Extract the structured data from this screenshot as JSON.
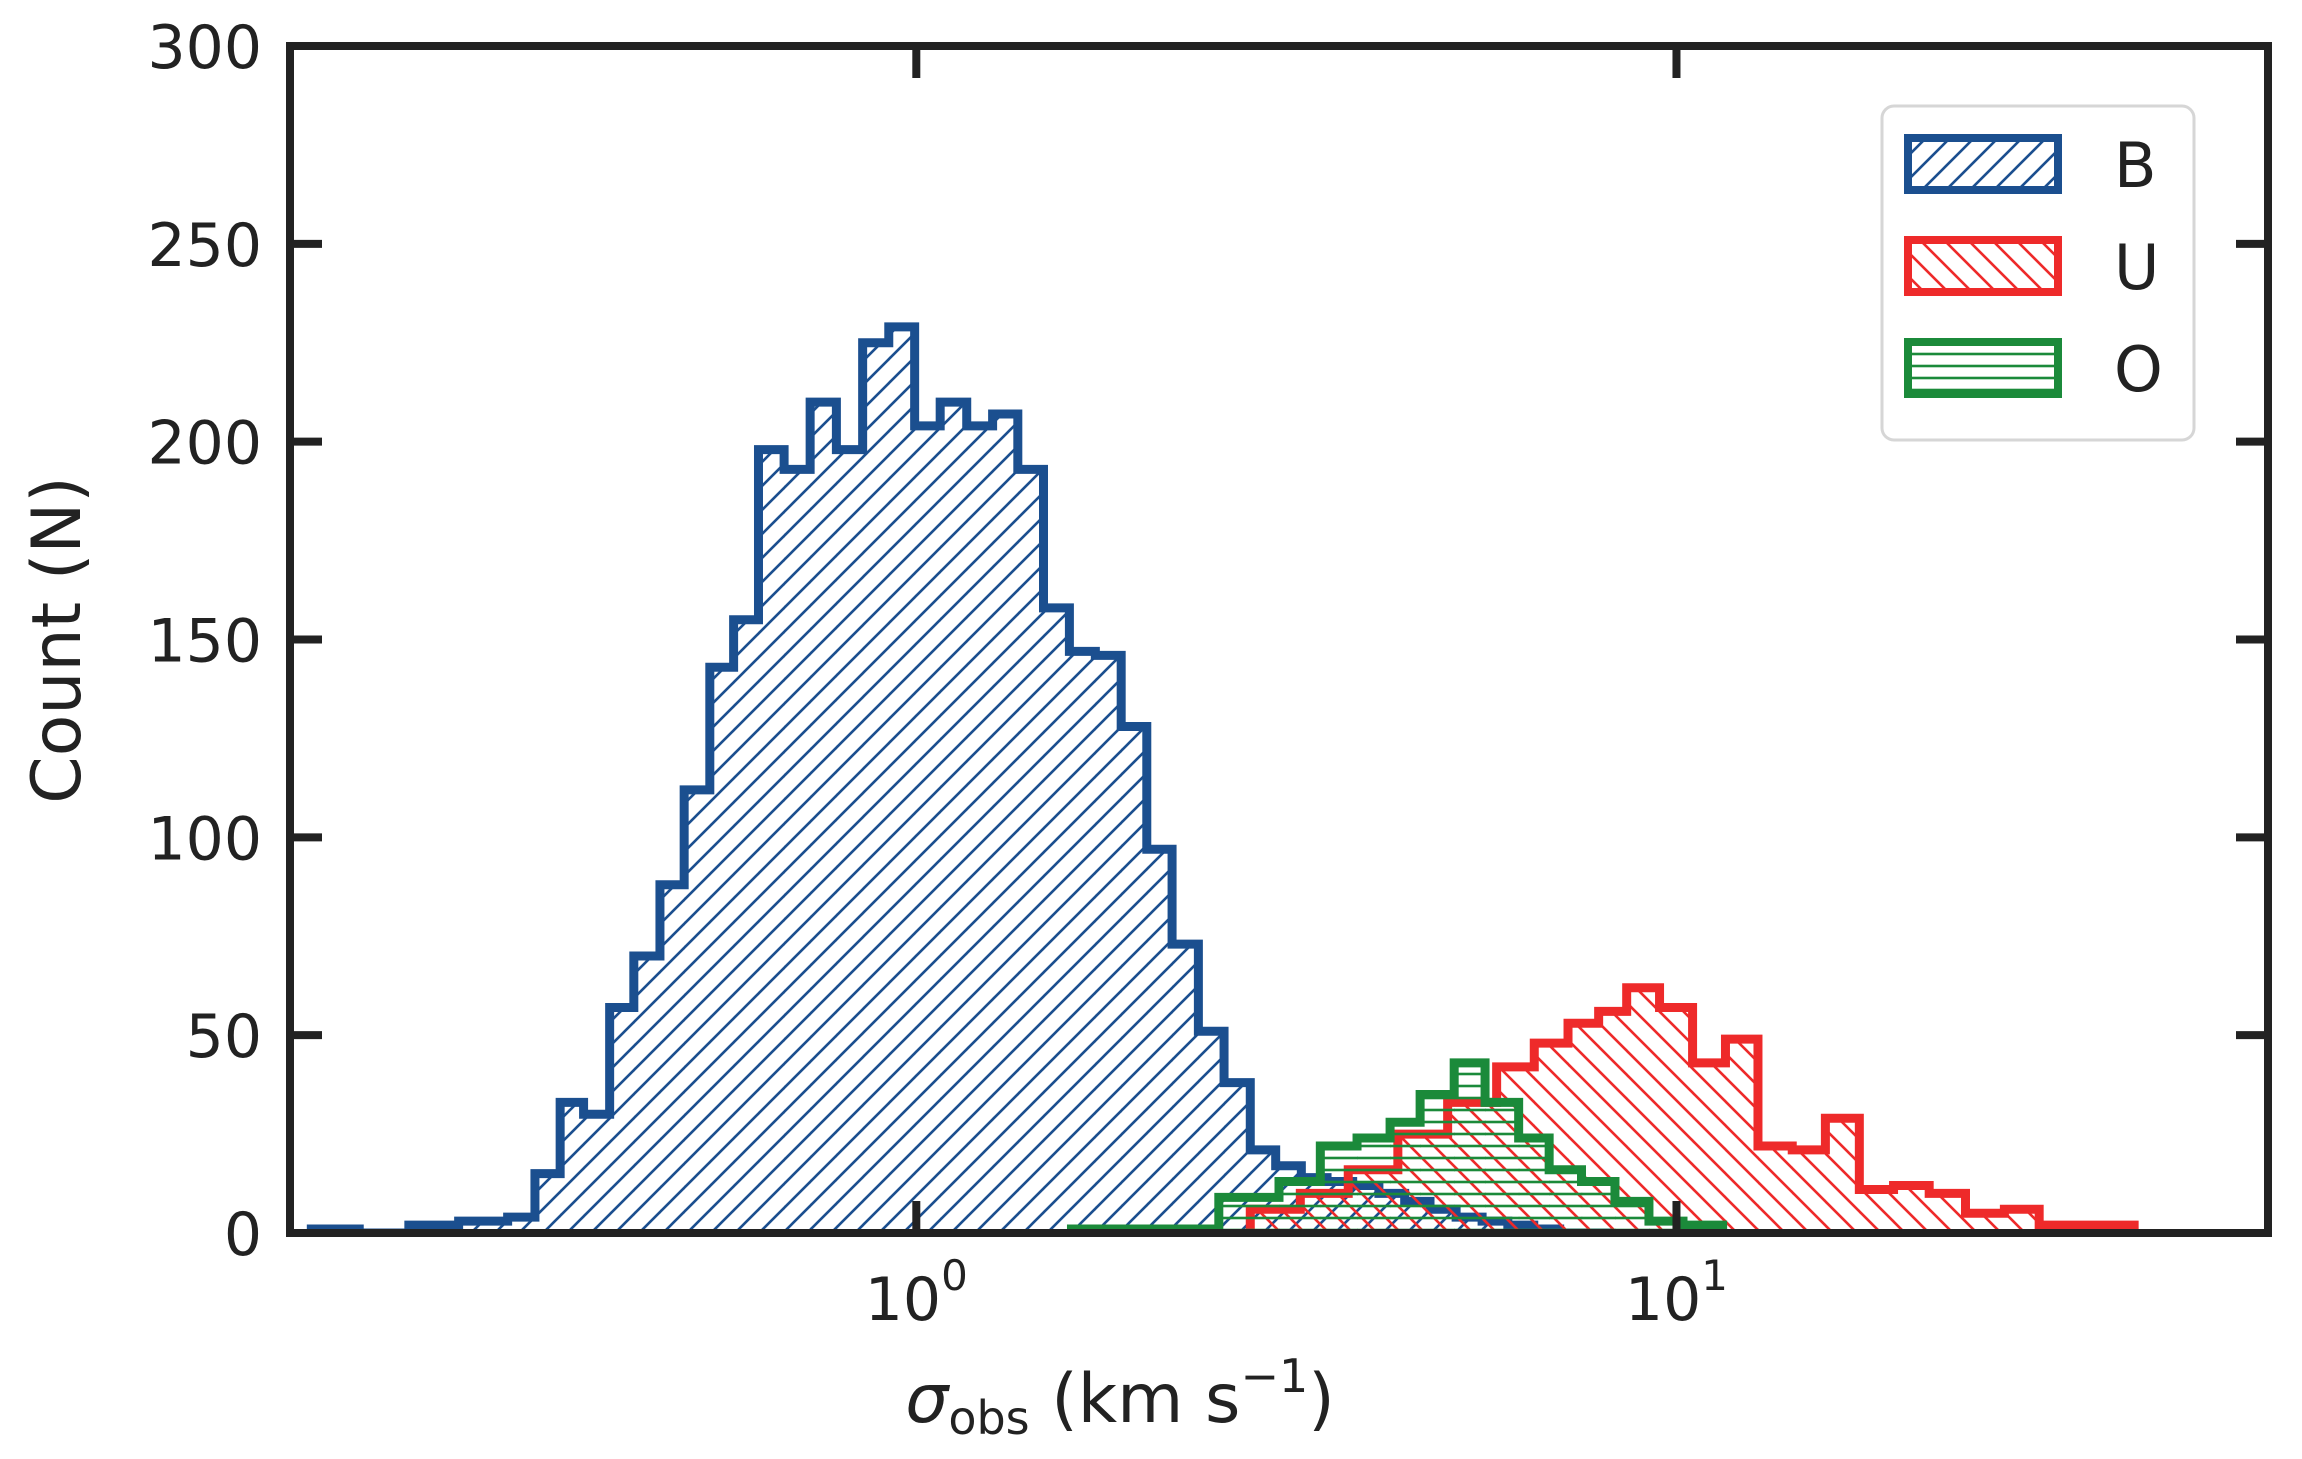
{
  "chart_data": {
    "type": "histogram",
    "xscale": "log",
    "xlim": [
      0.15,
      60
    ],
    "ylim": [
      0,
      300
    ],
    "xlabel": {
      "symbol": "σ",
      "subscript": "obs",
      "units": " (km s",
      "exponent": "−1",
      "close": ")"
    },
    "ylabel": "Count (N)",
    "x_ticks": [
      {
        "value": 1,
        "base": "10",
        "exp": "0"
      },
      {
        "value": 10,
        "base": "10",
        "exp": "1"
      }
    ],
    "y_ticks": [
      {
        "value": 0,
        "label": "0"
      },
      {
        "value": 50,
        "label": "50"
      },
      {
        "value": 100,
        "label": "100"
      },
      {
        "value": 150,
        "label": "150"
      },
      {
        "value": 200,
        "label": "200"
      },
      {
        "value": 250,
        "label": "250"
      },
      {
        "value": 300,
        "label": "300"
      }
    ],
    "legend": {
      "position": "top-right",
      "entries": [
        {
          "name": "B",
          "color": "#1b4f8f",
          "hatch": "diagonal-up"
        },
        {
          "name": "U",
          "color": "#ee2a2a",
          "hatch": "diagonal-down"
        },
        {
          "name": "O",
          "color": "#1b8a3a",
          "hatch": "horizontal"
        }
      ]
    },
    "series": [
      {
        "name": "B",
        "color": "#1b4f8f",
        "hatch": "diagonal-up",
        "bins": [
          0.16,
          0.185,
          0.215,
          0.25,
          0.29,
          0.315,
          0.34,
          0.365,
          0.395,
          0.425,
          0.46,
          0.495,
          0.535,
          0.575,
          0.62,
          0.67,
          0.725,
          0.785,
          0.85,
          0.92,
          0.995,
          1.075,
          1.165,
          1.26,
          1.36,
          1.47,
          1.59,
          1.72,
          1.86,
          2.01,
          2.17,
          2.35,
          2.54,
          2.75,
          2.97,
          3.21,
          3.47,
          3.75,
          4.06,
          4.39,
          4.74,
          5.13,
          5.55,
          6.0,
          6.49,
          7.02,
          7.59,
          8.2
        ],
        "counts": [
          1,
          0,
          2,
          3,
          4,
          15,
          33,
          30,
          57,
          70,
          88,
          112,
          143,
          155,
          198,
          193,
          210,
          198,
          225,
          229,
          204,
          210,
          204,
          207,
          193,
          158,
          147,
          146,
          128,
          97,
          73,
          51,
          38,
          21,
          17,
          14,
          13,
          12,
          10,
          8,
          6,
          4,
          3,
          2,
          1,
          0,
          0
        ]
      },
      {
        "name": "U",
        "color": "#ee2a2a",
        "hatch": "diagonal-down",
        "bins": [
          2.75,
          3.2,
          3.7,
          4.3,
          5.0,
          5.8,
          6.5,
          7.2,
          7.9,
          8.6,
          9.5,
          10.5,
          11.6,
          12.8,
          14.2,
          15.7,
          17.4,
          19.3,
          21.5,
          24.0,
          27.0,
          30.0,
          34.0,
          40.0
        ],
        "counts": [
          6,
          10,
          16,
          25,
          33,
          42,
          48,
          53,
          56,
          62,
          57,
          43,
          49,
          22,
          21,
          29,
          11,
          12,
          10,
          5,
          6,
          2,
          2
        ]
      },
      {
        "name": "O",
        "color": "#1b8a3a",
        "hatch": "horizontal",
        "bins": [
          1.6,
          2.0,
          2.5,
          3.0,
          3.4,
          3.8,
          4.2,
          4.6,
          5.1,
          5.6,
          6.2,
          6.8,
          7.5,
          8.3,
          9.2,
          10.2,
          11.5
        ],
        "counts": [
          1,
          1,
          9,
          13,
          22,
          24,
          28,
          35,
          43,
          33,
          24,
          16,
          13,
          8,
          3,
          2
        ]
      }
    ]
  }
}
